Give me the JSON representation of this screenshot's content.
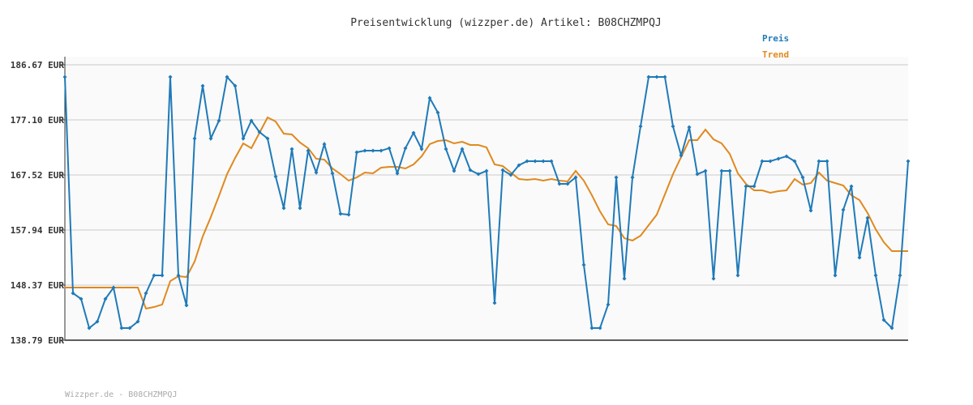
{
  "chart_data": {
    "type": "line",
    "title": "Preisentwicklung (wizzper.de) Artikel: B08CHZMPQJ",
    "footer": "Wizzper.de - B08CHZMPQJ",
    "ylim": [
      138.79,
      186.67
    ],
    "yticks": [
      {
        "value": 138.79,
        "label": "138.79 EUR"
      },
      {
        "value": 148.37,
        "label": "148.37 EUR"
      },
      {
        "value": 157.94,
        "label": "157.94 EUR"
      },
      {
        "value": 167.52,
        "label": "167.52 EUR"
      },
      {
        "value": 177.1,
        "label": "177.10 EUR"
      },
      {
        "value": 186.67,
        "label": "186.67 EUR"
      }
    ],
    "grid": true,
    "legend": "top-right",
    "series": [
      {
        "name": "Preis",
        "color": "#1f7ab8",
        "markers": true,
        "values": [
          184.56,
          146.96,
          145.97,
          140.9,
          142.03,
          145.97,
          147.94,
          140.9,
          140.9,
          142.03,
          146.96,
          150.06,
          150.06,
          184.56,
          150.06,
          144.85,
          173.86,
          183.01,
          173.86,
          176.95,
          184.56,
          183.01,
          173.86,
          176.95,
          174.98,
          173.86,
          167.24,
          161.75,
          172.03,
          161.75,
          171.74,
          167.94,
          172.87,
          167.8,
          160.76,
          160.62,
          171.46,
          171.74,
          171.74,
          171.74,
          172.17,
          167.8,
          172.17,
          174.84,
          172.03,
          180.9,
          178.36,
          172.03,
          168.22,
          172.03,
          168.36,
          167.66,
          168.22,
          145.27,
          168.36,
          167.52,
          169.21,
          169.91,
          169.91,
          169.91,
          169.91,
          165.97,
          165.97,
          167.1,
          151.88,
          140.9,
          140.9,
          144.99,
          167.1,
          149.49,
          167.1,
          175.97,
          184.56,
          184.56,
          184.56,
          175.97,
          170.9,
          175.83,
          167.66,
          168.22,
          149.49,
          168.22,
          168.22,
          150.06,
          165.55,
          165.55,
          169.91,
          169.91,
          170.34,
          170.76,
          169.91,
          167.1,
          161.32,
          169.91,
          169.91,
          150.06,
          161.46,
          165.55,
          153.15,
          160.05,
          150.06,
          142.31,
          140.9,
          150.06,
          169.91
        ]
      },
      {
        "name": "Trend",
        "color": "#e0891f",
        "markers": false,
        "values": [
          147.94,
          147.94,
          147.94,
          147.94,
          147.94,
          147.94,
          147.94,
          147.94,
          147.94,
          147.94,
          144.28,
          144.56,
          144.99,
          149.07,
          149.91,
          149.77,
          152.45,
          156.82,
          160.2,
          163.86,
          167.66,
          170.48,
          173.01,
          172.17,
          174.84,
          177.52,
          176.81,
          174.7,
          174.56,
          173.15,
          172.17,
          170.34,
          170.19,
          168.65,
          167.66,
          166.53,
          167.1,
          167.94,
          167.8,
          168.79,
          168.93,
          168.93,
          168.65,
          169.35,
          170.76,
          172.87,
          173.43,
          173.57,
          173.01,
          173.29,
          172.73,
          172.73,
          172.31,
          169.35,
          169.07,
          167.94,
          166.81,
          166.67,
          166.81,
          166.53,
          166.81,
          166.53,
          166.39,
          168.22,
          166.53,
          163.99,
          161.18,
          158.93,
          158.65,
          156.53,
          156.11,
          156.96,
          158.79,
          160.62,
          164.14,
          167.66,
          170.62,
          173.57,
          173.57,
          175.4,
          173.71,
          173.01,
          171.18,
          167.8,
          165.97,
          164.84,
          164.84,
          164.42,
          164.7,
          164.84,
          166.81,
          165.83,
          166.11,
          167.94,
          166.53,
          166.11,
          165.69,
          163.99,
          163.15,
          160.9,
          158.08,
          155.83,
          154.28,
          154.28,
          154.28
        ]
      }
    ]
  }
}
